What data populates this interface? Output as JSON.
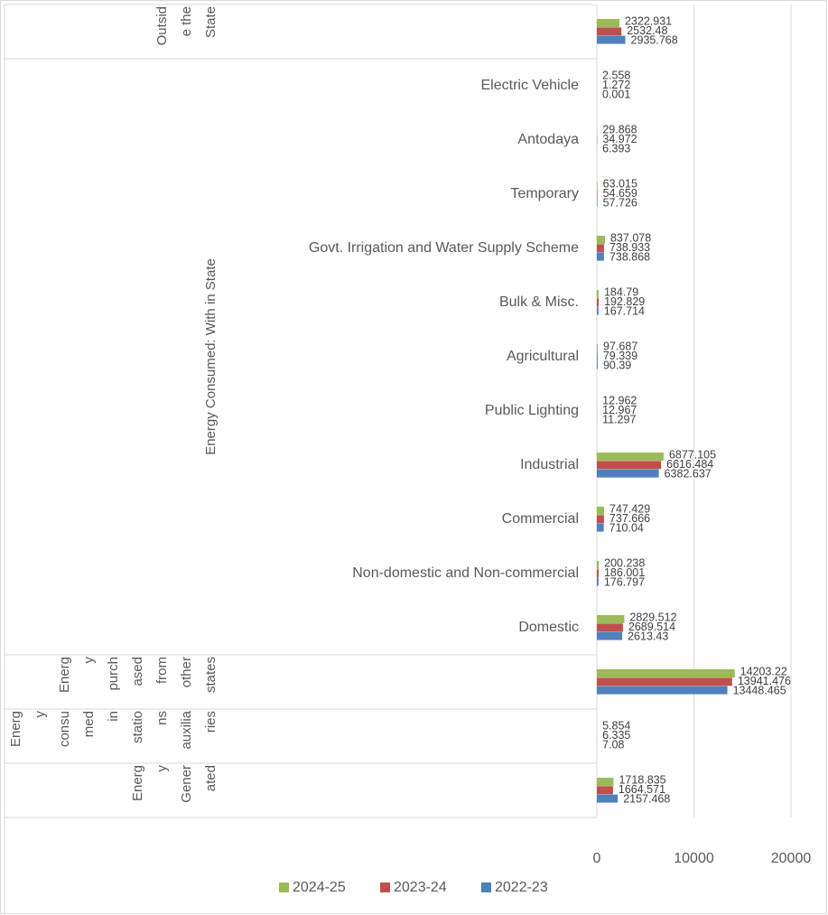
{
  "chart_data": {
    "type": "bar",
    "orientation": "horizontal",
    "groups": [
      {
        "label": [
          "Outsid",
          "e the",
          "State"
        ],
        "categories": [
          null
        ]
      },
      {
        "label": [
          "Energy Consumed: With in State"
        ],
        "categories": [
          "Electric Vehicle",
          "Antodaya",
          "Temporary",
          "Govt. Irrigation and Water Supply Scheme",
          "Bulk & Misc.",
          "Agricultural",
          "Public Lighting",
          "Industrial",
          "Commercial",
          "Non-domestic and Non-commercial",
          "Domestic"
        ]
      },
      {
        "label": [
          "Energ",
          "y",
          "purch",
          "ased",
          "from",
          "other",
          "states"
        ],
        "categories": [
          null
        ]
      },
      {
        "label": [
          "Energ",
          "y",
          "consu",
          "med",
          "in",
          "statio",
          "ns",
          "auxilia",
          "ries"
        ],
        "categories": [
          null
        ]
      },
      {
        "label": [
          "Energ",
          "y",
          "Gener",
          "ated"
        ],
        "categories": [
          null
        ]
      }
    ],
    "series": [
      {
        "name": "2024-25",
        "color": "#9bbb59",
        "values": [
          2322.931,
          2.558,
          29.868,
          63.015,
          837.078,
          184.79,
          97.687,
          12.962,
          6877.105,
          747.429,
          200.238,
          2829.512,
          14203.22,
          5.854,
          1718.835
        ]
      },
      {
        "name": "2023-24",
        "color": "#c0504d",
        "values": [
          2532.48,
          1.272,
          34.972,
          54.659,
          738.933,
          192.829,
          79.339,
          12.967,
          6616.484,
          737.666,
          186.001,
          2689.514,
          13941.476,
          6.335,
          1664.571
        ]
      },
      {
        "name": "2022-23",
        "color": "#4f81bd",
        "values": [
          2935.768,
          0.001,
          6.393,
          57.726,
          738.868,
          167.714,
          90.39,
          11.297,
          6382.637,
          710.04,
          176.797,
          2613.43,
          13448.465,
          7.08,
          2157.468
        ]
      }
    ],
    "xlim": [
      0,
      20000
    ],
    "xticks": [
      0,
      10000,
      20000
    ],
    "grid": true,
    "legend": "bottom"
  }
}
